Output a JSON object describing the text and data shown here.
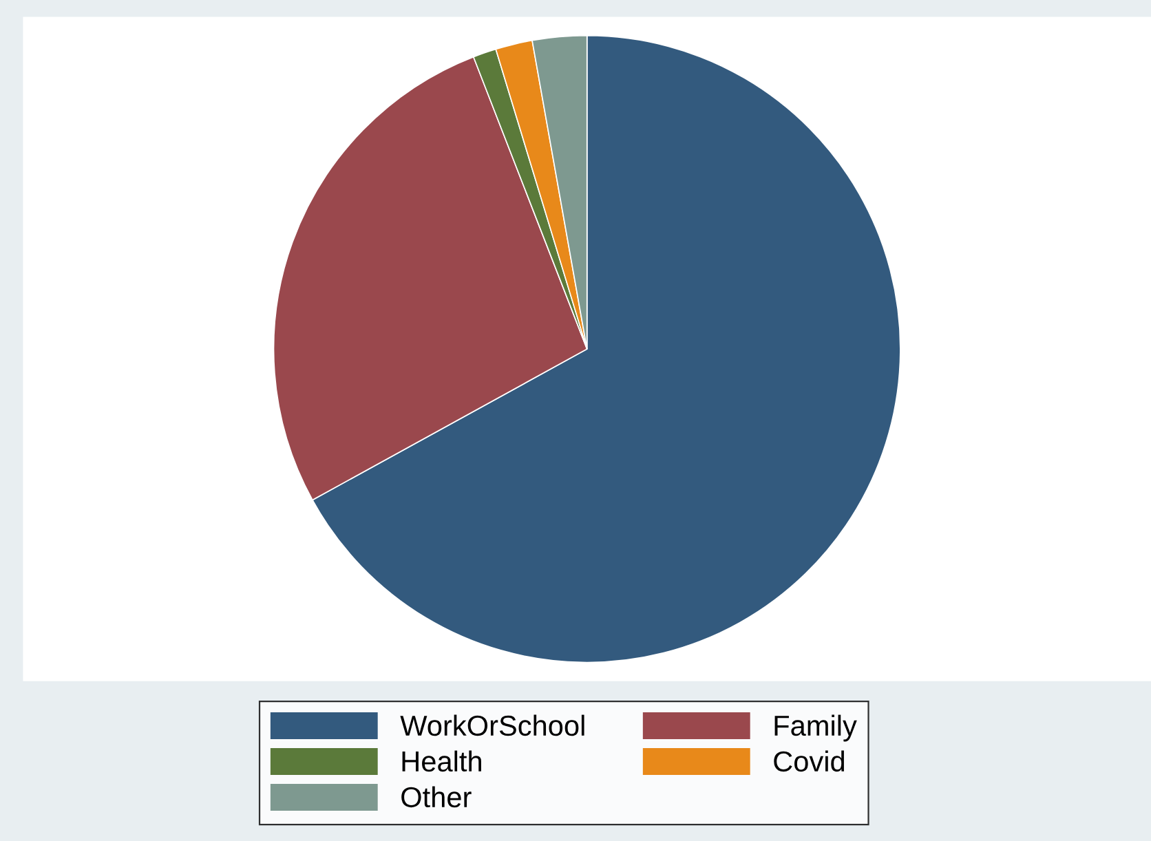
{
  "chart_data": {
    "type": "pie",
    "categories": [
      "WorkOrSchool",
      "Family",
      "Health",
      "Covid",
      "Other"
    ],
    "values": [
      67.0,
      27.1,
      1.2,
      1.9,
      2.8
    ],
    "colors": [
      "#335a7e",
      "#9a484d",
      "#5b7a3a",
      "#e8891a",
      "#7e9990"
    ],
    "legend": "bottom"
  }
}
